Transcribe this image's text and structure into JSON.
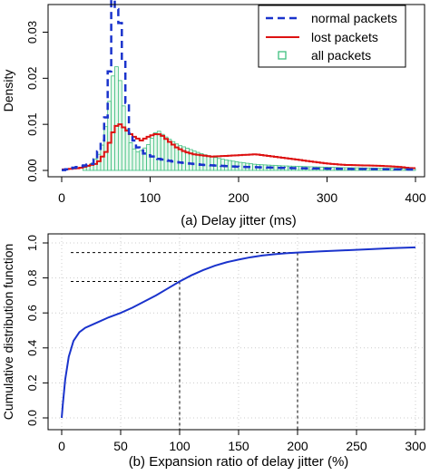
{
  "chart_data": [
    {
      "type": "bar",
      "caption": "(a) Delay jitter (ms)",
      "title": "",
      "xlabel": "",
      "ylabel": "Density",
      "xlim": [
        0,
        400
      ],
      "ylim": [
        0,
        0.036
      ],
      "xticks": [
        "0",
        "100",
        "200",
        "300",
        "400"
      ],
      "yticks": [
        "0.00",
        "0.01",
        "0.02",
        "0.03"
      ],
      "bin_width": 4,
      "legend": {
        "position": "top-right",
        "entries": [
          "normal packets",
          "lost packets",
          "all packets"
        ]
      },
      "series": [
        {
          "name": "normal packets",
          "style": "dashed-line",
          "color": "#1a33cc",
          "points": [
            [
              0,
              0
            ],
            [
              36,
              0.0015
            ],
            [
              44,
              0.005
            ],
            [
              48,
              0.008
            ],
            [
              52,
              0.015
            ],
            [
              56,
              0.028
            ],
            [
              58,
              0.037
            ],
            [
              64,
              0.034
            ],
            [
              68,
              0.03
            ],
            [
              72,
              0.018
            ],
            [
              78,
              0.008
            ],
            [
              86,
              0.005
            ],
            [
              95,
              0.0035
            ],
            [
              110,
              0.0025
            ],
            [
              130,
              0.0018
            ],
            [
              160,
              0.0012
            ],
            [
              200,
              0.0008
            ],
            [
              260,
              0.0005
            ],
            [
              330,
              0.0003
            ],
            [
              400,
              0.0002
            ]
          ]
        },
        {
          "name": "lost packets",
          "style": "step-line",
          "color": "#dd1111",
          "points": [
            [
              0,
              0.0002
            ],
            [
              20,
              0.0005
            ],
            [
              40,
              0.0015
            ],
            [
              50,
              0.004
            ],
            [
              56,
              0.007
            ],
            [
              60,
              0.0095
            ],
            [
              66,
              0.01
            ],
            [
              72,
              0.009
            ],
            [
              80,
              0.0075
            ],
            [
              90,
              0.0065
            ],
            [
              100,
              0.0075
            ],
            [
              108,
              0.008
            ],
            [
              114,
              0.0075
            ],
            [
              120,
              0.0065
            ],
            [
              130,
              0.005
            ],
            [
              140,
              0.004
            ],
            [
              150,
              0.0035
            ],
            [
              170,
              0.003
            ],
            [
              190,
              0.0032
            ],
            [
              220,
              0.0035
            ],
            [
              240,
              0.003
            ],
            [
              260,
              0.0025
            ],
            [
              280,
              0.002
            ],
            [
              300,
              0.0015
            ],
            [
              320,
              0.0012
            ],
            [
              360,
              0.001
            ],
            [
              380,
              0.0008
            ],
            [
              395,
              0.0005
            ]
          ]
        },
        {
          "name": "all packets",
          "style": "histogram",
          "color": "#3fbf7f",
          "points": [
            [
              24,
              0.0005
            ],
            [
              32,
              0.001
            ],
            [
              40,
              0.003
            ],
            [
              44,
              0.004
            ],
            [
              48,
              0.007
            ],
            [
              52,
              0.012
            ],
            [
              56,
              0.018
            ],
            [
              60,
              0.023
            ],
            [
              64,
              0.022
            ],
            [
              68,
              0.017
            ],
            [
              72,
              0.011
            ],
            [
              76,
              0.007
            ],
            [
              80,
              0.005
            ],
            [
              86,
              0.004
            ],
            [
              92,
              0.0045
            ],
            [
              100,
              0.006
            ],
            [
              104,
              0.008
            ],
            [
              110,
              0.0085
            ],
            [
              116,
              0.0075
            ],
            [
              124,
              0.0065
            ],
            [
              132,
              0.0055
            ],
            [
              140,
              0.005
            ],
            [
              150,
              0.0042
            ],
            [
              160,
              0.0035
            ],
            [
              180,
              0.0025
            ],
            [
              200,
              0.0018
            ],
            [
              220,
              0.0013
            ],
            [
              250,
              0.001
            ],
            [
              280,
              0.0008
            ],
            [
              320,
              0.0006
            ],
            [
              360,
              0.0005
            ],
            [
              396,
              0.0004
            ]
          ]
        }
      ]
    },
    {
      "type": "line",
      "caption": "(b) Expansion ratio of delay jitter (%)",
      "title": "",
      "xlabel": "",
      "ylabel": "Cumulative distribution function",
      "xlim": [
        0,
        300
      ],
      "ylim": [
        0,
        1
      ],
      "xticks": [
        "0",
        "50",
        "100",
        "150",
        "200",
        "250",
        "300"
      ],
      "yticks": [
        "0.0",
        "0.2",
        "0.4",
        "0.6",
        "0.8",
        "1.0"
      ],
      "grid": "dotted",
      "series": [
        {
          "name": "",
          "color": "#1a33cc",
          "points": [
            [
              0,
              0
            ],
            [
              1,
              0.08
            ],
            [
              3,
              0.22
            ],
            [
              6,
              0.35
            ],
            [
              10,
              0.44
            ],
            [
              15,
              0.49
            ],
            [
              20,
              0.515
            ],
            [
              30,
              0.545
            ],
            [
              40,
              0.575
            ],
            [
              50,
              0.6
            ],
            [
              60,
              0.63
            ],
            [
              70,
              0.665
            ],
            [
              80,
              0.7
            ],
            [
              90,
              0.74
            ],
            [
              100,
              0.78
            ],
            [
              110,
              0.815
            ],
            [
              120,
              0.845
            ],
            [
              130,
              0.87
            ],
            [
              140,
              0.89
            ],
            [
              150,
              0.905
            ],
            [
              160,
              0.918
            ],
            [
              170,
              0.928
            ],
            [
              180,
              0.935
            ],
            [
              190,
              0.941
            ],
            [
              200,
              0.945
            ],
            [
              220,
              0.952
            ],
            [
              240,
              0.958
            ],
            [
              260,
              0.964
            ],
            [
              280,
              0.97
            ],
            [
              300,
              0.975
            ]
          ]
        }
      ],
      "reference_lines": [
        {
          "x": 100,
          "y": 0.78
        },
        {
          "x": 200,
          "y": 0.945
        }
      ]
    }
  ]
}
